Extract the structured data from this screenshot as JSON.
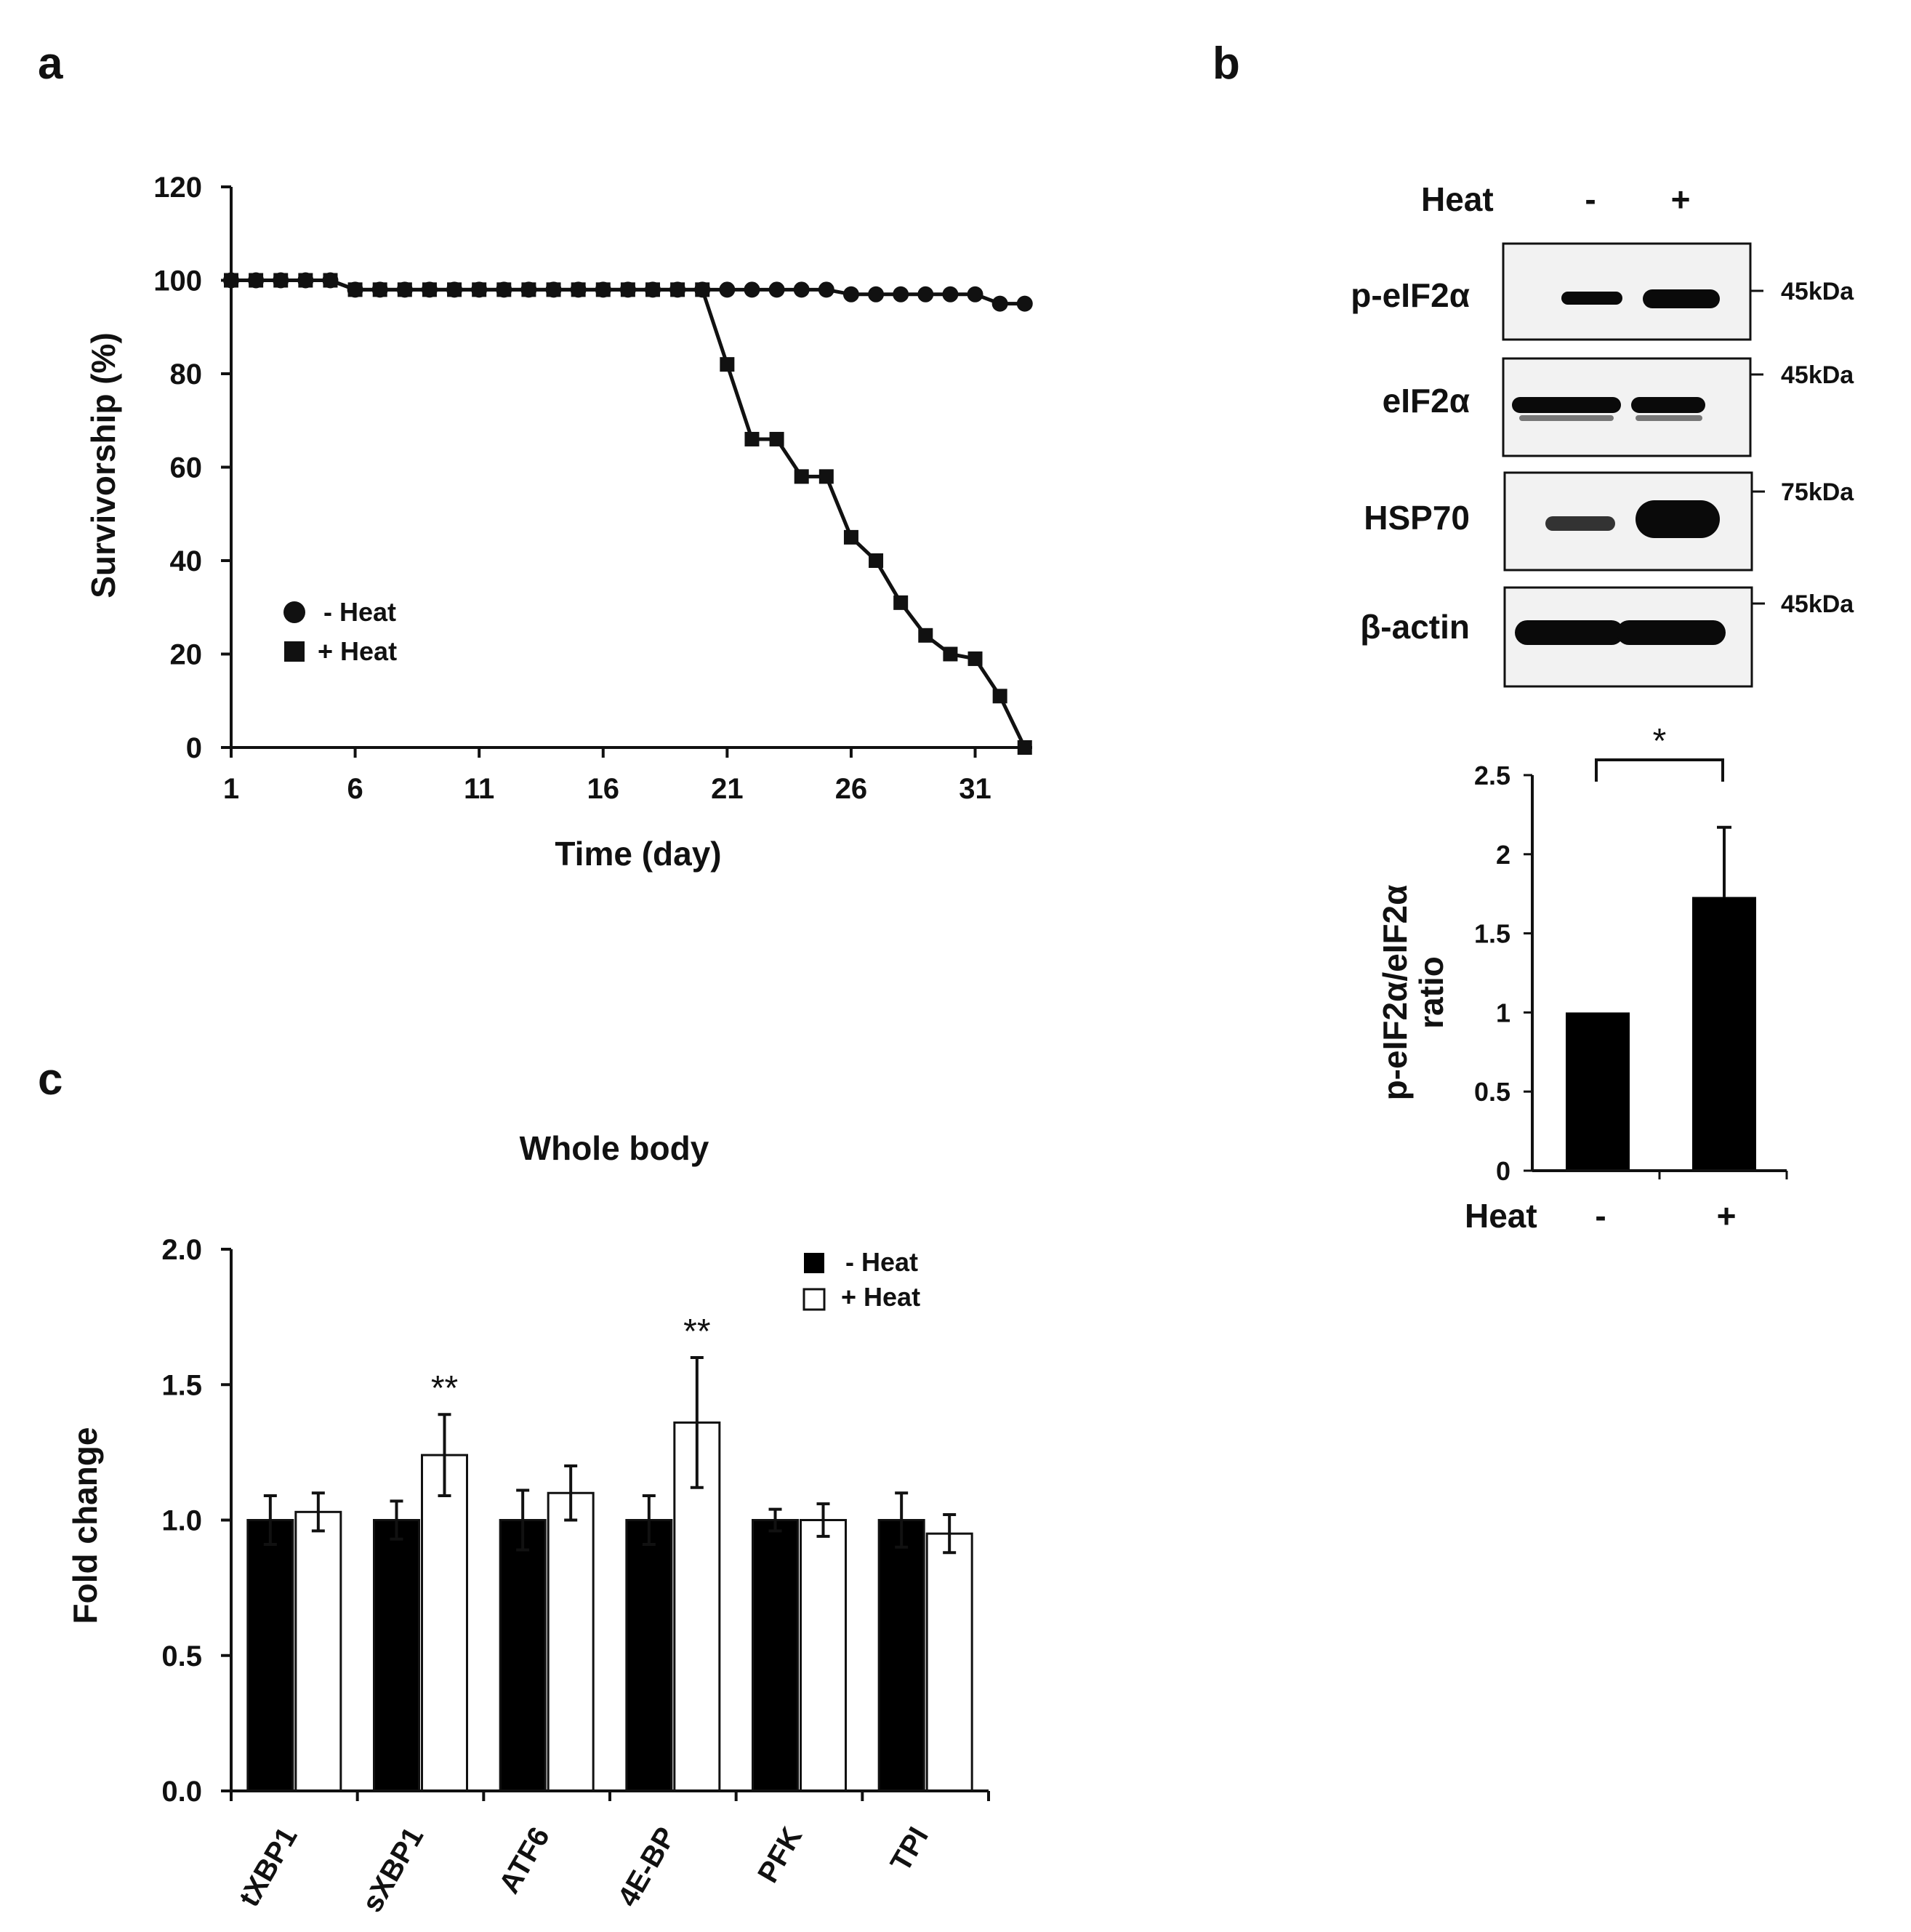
{
  "panels": {
    "a": "a",
    "b": "b",
    "c": "c"
  },
  "colors": {
    "ink": "#111111",
    "bar_dark": "#000000",
    "bar_light": "#ffffff",
    "blot_bg": "#f2f2f2",
    "band": "#0a0a0a"
  },
  "chart_data": [
    {
      "id": "survival",
      "type": "line",
      "xlabel": "Time (day)",
      "ylabel": "Survivorship (%)",
      "xlim": [
        1,
        33
      ],
      "ylim": [
        0,
        120
      ],
      "x_ticks": [
        "1",
        "6",
        "11",
        "16",
        "21",
        "26",
        "31"
      ],
      "x_tick_values": [
        1,
        6,
        11,
        16,
        21,
        26,
        31
      ],
      "y_ticks": [
        "0",
        "20",
        "40",
        "60",
        "80",
        "100",
        "120"
      ],
      "y_tick_values": [
        0,
        20,
        40,
        60,
        80,
        100,
        120
      ],
      "legend_position": "lower-left",
      "series": [
        {
          "name": "- Heat",
          "marker": "circle",
          "x": [
            1,
            2,
            3,
            4,
            5,
            6,
            7,
            8,
            9,
            10,
            11,
            12,
            13,
            14,
            15,
            16,
            17,
            18,
            19,
            20,
            21,
            22,
            23,
            24,
            25,
            26,
            27,
            28,
            29,
            30,
            31,
            32,
            33
          ],
          "values": [
            100,
            100,
            100,
            100,
            100,
            98,
            98,
            98,
            98,
            98,
            98,
            98,
            98,
            98,
            98,
            98,
            98,
            98,
            98,
            98,
            98,
            98,
            98,
            98,
            98,
            97,
            97,
            97,
            97,
            97,
            97,
            95,
            95
          ]
        },
        {
          "name": "+ Heat",
          "marker": "square",
          "x": [
            1,
            2,
            3,
            4,
            5,
            6,
            7,
            8,
            9,
            10,
            11,
            12,
            13,
            14,
            15,
            16,
            17,
            18,
            19,
            20,
            21,
            22,
            23,
            24,
            25,
            26,
            27,
            28,
            29,
            30,
            31,
            32,
            33
          ],
          "values": [
            100,
            100,
            100,
            100,
            100,
            98,
            98,
            98,
            98,
            98,
            98,
            98,
            98,
            98,
            98,
            98,
            98,
            98,
            98,
            98,
            82,
            66,
            66,
            58,
            58,
            45,
            40,
            31,
            24,
            20,
            19,
            11,
            0
          ]
        }
      ]
    },
    {
      "id": "ratio",
      "type": "bar",
      "ylabel_lines": [
        "p-eIF2α/eIF2α",
        "ratio"
      ],
      "xaxis_label": "Heat",
      "categories": [
        "-",
        "+"
      ],
      "values": [
        1.0,
        1.73
      ],
      "errors": [
        0.01,
        0.44
      ],
      "ylim": [
        0,
        2.5
      ],
      "y_ticks": [
        "0",
        "0.5",
        "1",
        "1.5",
        "2",
        "2.5"
      ],
      "y_tick_values": [
        0,
        0.5,
        1,
        1.5,
        2,
        2.5
      ],
      "significance": "*"
    },
    {
      "id": "whole_body",
      "type": "bar",
      "title": "Whole body",
      "ylabel": "Fold change",
      "categories": [
        "tXBP1",
        "sXBP1",
        "ATF6",
        "4E-BP",
        "PFK",
        "TPI"
      ],
      "ylim": [
        0,
        2.0
      ],
      "y_ticks": [
        "0.0",
        "0.5",
        "1.0",
        "1.5",
        "2.0"
      ],
      "y_tick_values": [
        0,
        0.5,
        1.0,
        1.5,
        2.0
      ],
      "legend_position": "top-right",
      "series": [
        {
          "name": "- Heat",
          "fill": "dark",
          "values": [
            1.0,
            1.0,
            1.0,
            1.0,
            1.0,
            1.0
          ],
          "errors": [
            0.09,
            0.07,
            0.11,
            0.09,
            0.04,
            0.1
          ]
        },
        {
          "name": "+ Heat",
          "fill": "light",
          "values": [
            1.03,
            1.24,
            1.1,
            1.36,
            1.0,
            0.95
          ],
          "errors": [
            0.07,
            0.15,
            0.1,
            0.24,
            0.06,
            0.07
          ]
        }
      ],
      "significance": [
        "",
        "**",
        "",
        "**",
        "",
        ""
      ]
    }
  ],
  "blot": {
    "header_label": "Heat",
    "lanes": [
      "-",
      "+"
    ],
    "rows": [
      {
        "label": "p-eIF2α",
        "kda": "45kDa",
        "intensity": [
          0.55,
          0.9
        ]
      },
      {
        "label": "eIF2α",
        "kda": "45kDa",
        "intensity": [
          0.8,
          0.8
        ]
      },
      {
        "label": "HSP70",
        "kda": "75kDa",
        "intensity": [
          0.45,
          1.0
        ]
      },
      {
        "label": "β-actin",
        "kda": "45kDa",
        "intensity": [
          0.95,
          0.95
        ]
      }
    ]
  }
}
